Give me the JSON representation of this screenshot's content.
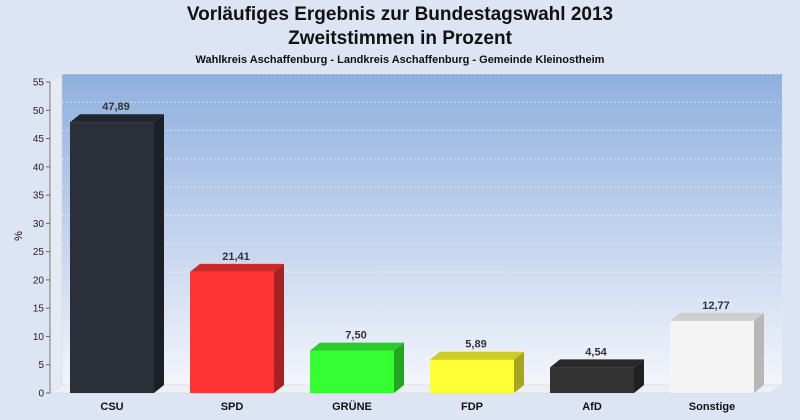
{
  "chart_data": {
    "type": "bar",
    "title": "Vorläufiges Ergebnis zur Bundestagswahl 2013",
    "subtitle": "Zweitstimmen in Prozent",
    "caption": "Wahlkreis Aschaffenburg - Landkreis Aschaffenburg - Gemeinde Kleinostheim",
    "ylabel": "%",
    "ylim": [
      0,
      55
    ],
    "yticks": [
      0,
      5,
      10,
      15,
      20,
      25,
      30,
      35,
      40,
      45,
      50,
      55
    ],
    "grid": true,
    "categories": [
      "CSU",
      "SPD",
      "GRÜNE",
      "FDP",
      "AfD",
      "Sonstige"
    ],
    "values": [
      47.89,
      21.41,
      7.5,
      5.89,
      4.54,
      12.77
    ],
    "value_labels": [
      "47,89",
      "21,41",
      "7,50",
      "5,89",
      "4,54",
      "12,77"
    ],
    "colors": [
      "#2b2f3a",
      "#ff3333",
      "#33ff33",
      "#ffff33",
      "#333333",
      "#f4f4f4"
    ]
  }
}
